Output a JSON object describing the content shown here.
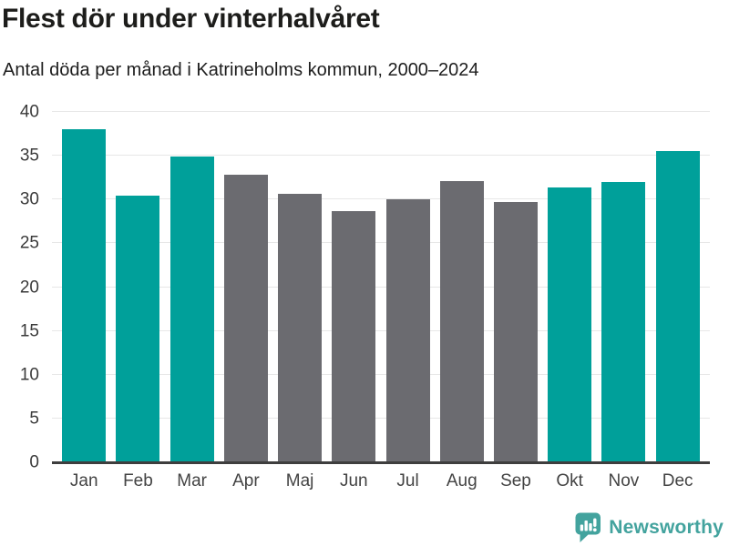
{
  "chart_data": {
    "type": "bar",
    "title": "Flest dör under vinterhalvåret",
    "subtitle": "Antal döda per månad i Katrineholms kommun, 2000–2024",
    "categories": [
      "Jan",
      "Feb",
      "Mar",
      "Apr",
      "Maj",
      "Jun",
      "Jul",
      "Aug",
      "Sep",
      "Okt",
      "Nov",
      "Dec"
    ],
    "values": [
      38.0,
      30.4,
      34.9,
      32.8,
      30.7,
      28.7,
      30.0,
      32.1,
      29.7,
      31.4,
      32.0,
      35.5
    ],
    "highlighted": [
      true,
      true,
      true,
      false,
      false,
      false,
      false,
      false,
      false,
      true,
      true,
      true
    ],
    "xlabel": "",
    "ylabel": "",
    "ylim": [
      0,
      40
    ],
    "yticks": [
      0,
      5,
      10,
      15,
      20,
      25,
      30,
      35,
      40
    ],
    "grid": true,
    "legend": false,
    "colors": {
      "highlight": "#00a09a",
      "base": "#6b6b70",
      "gridline": "#e7e7e7",
      "axis_line": "#3e3e3e",
      "tick_label": "#3a3a3a",
      "month_label": "#434343",
      "title": "#1d1d1b"
    }
  },
  "footer": {
    "brand": "Newsworthy",
    "logo_color": "#43a39e"
  }
}
